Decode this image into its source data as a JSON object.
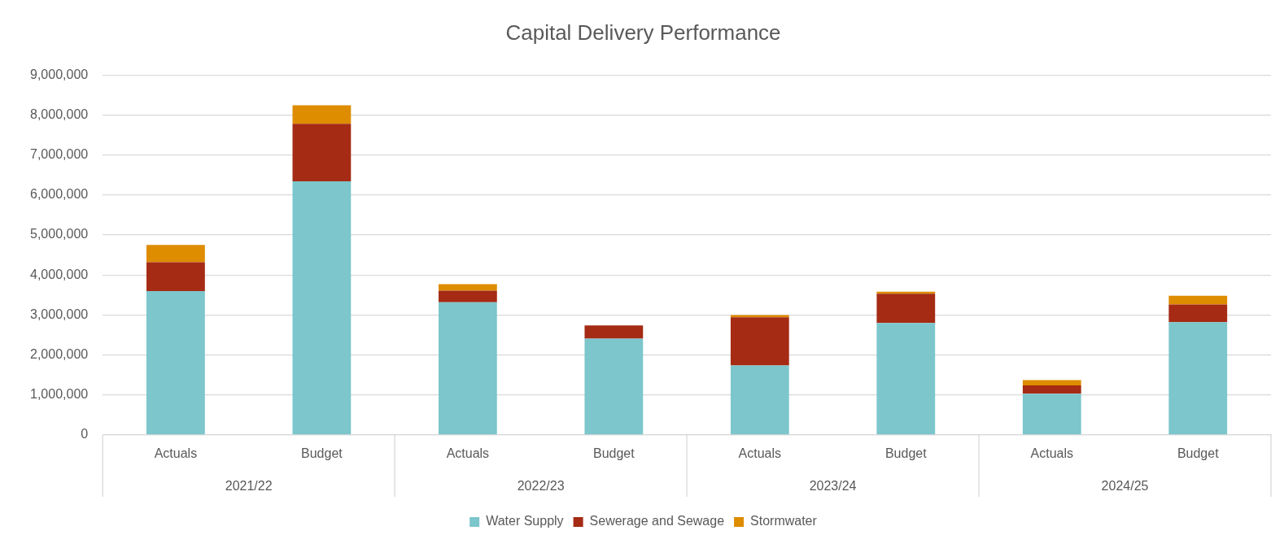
{
  "chart_data": {
    "type": "bar",
    "title": "Capital Delivery Performance",
    "categories": [
      "Actuals",
      "Budget",
      "Actuals",
      "Budget",
      "Actuals",
      "Budget",
      "Actuals",
      "Budget"
    ],
    "series": [
      {
        "name": "Water Supply",
        "color": "#7cc6cc",
        "values": [
          3600000,
          6340000,
          3320000,
          2410000,
          1740000,
          2800000,
          1030000,
          2820000
        ]
      },
      {
        "name": "Sewerage and Sewage",
        "color": "#a52b14",
        "values": [
          720000,
          1440000,
          290000,
          330000,
          1200000,
          730000,
          210000,
          440000
        ]
      },
      {
        "name": "Stormwater",
        "color": "#de8c00",
        "values": [
          430000,
          460000,
          160000,
          0,
          60000,
          50000,
          130000,
          220000
        ]
      }
    ],
    "stacked": true,
    "ylim": [
      0,
      9000000
    ],
    "yticks": [
      {
        "value": 0,
        "label": "0"
      },
      {
        "value": 1000000,
        "label": "1,000,000"
      },
      {
        "value": 2000000,
        "label": "2,000,000"
      },
      {
        "value": 3000000,
        "label": "3,000,000"
      },
      {
        "value": 4000000,
        "label": "4,000,000"
      },
      {
        "value": 5000000,
        "label": "5,000,000"
      },
      {
        "value": 6000000,
        "label": "6,000,000"
      },
      {
        "value": 7000000,
        "label": "7,000,000"
      },
      {
        "value": 8000000,
        "label": "8,000,000"
      },
      {
        "value": 9000000,
        "label": "9,000,000"
      }
    ],
    "grid": "y",
    "legend": "bottom",
    "annotations": [
      "2021/22",
      "2022/23",
      "2023/24",
      "2024/25"
    ]
  }
}
